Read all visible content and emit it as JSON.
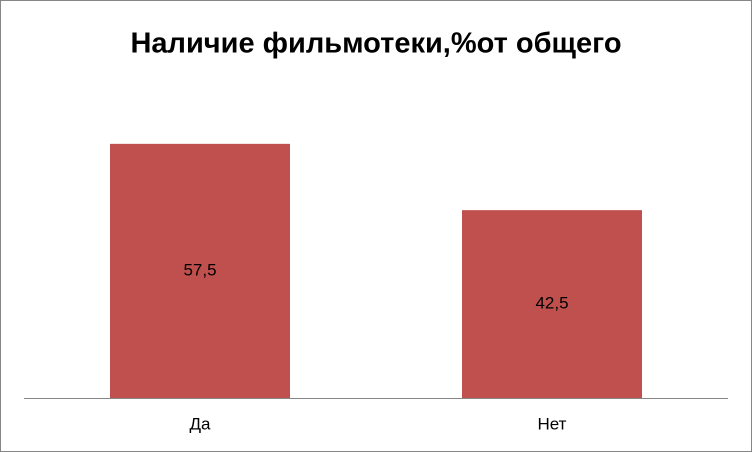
{
  "chart_data": {
    "type": "bar",
    "title": "Наличие фильмотеки,%от общего",
    "categories": [
      "Да",
      "Нет"
    ],
    "values": [
      57.5,
      42.5
    ],
    "value_labels": [
      "57,5",
      "42,5"
    ],
    "color": "#c0504d"
  }
}
